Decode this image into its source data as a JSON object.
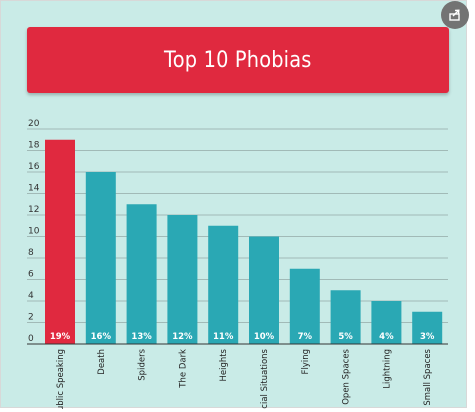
{
  "colors": {
    "panel_background": "#c9ebe7",
    "title_background": "#e0293f",
    "highlight_bar": "#e0293f",
    "bar": "#2aa8b4",
    "gridline": "#7a8a88",
    "share_button": "#737373"
  },
  "share_icon": "share-icon",
  "chart_data": {
    "type": "bar",
    "title": "Top 10 Phobias",
    "xlabel": "",
    "ylabel": "",
    "ylim": [
      0,
      20
    ],
    "yticks": [
      0,
      2,
      4,
      6,
      8,
      10,
      12,
      14,
      16,
      18,
      20
    ],
    "grid": true,
    "legend": "none",
    "categories": [
      "Public Speaking",
      "Death",
      "Spiders",
      "The Dark",
      "Heights",
      "Social Situations",
      "Flying",
      "Open Spaces",
      "Lightning",
      "Small Spaces"
    ],
    "values": [
      19,
      16,
      13,
      12,
      11,
      10,
      7,
      5,
      4,
      3
    ],
    "data_labels": [
      "19%",
      "16%",
      "13%",
      "12%",
      "11%",
      "10%",
      "7%",
      "5%",
      "4%",
      "3%"
    ],
    "highlighted_index": 0
  }
}
